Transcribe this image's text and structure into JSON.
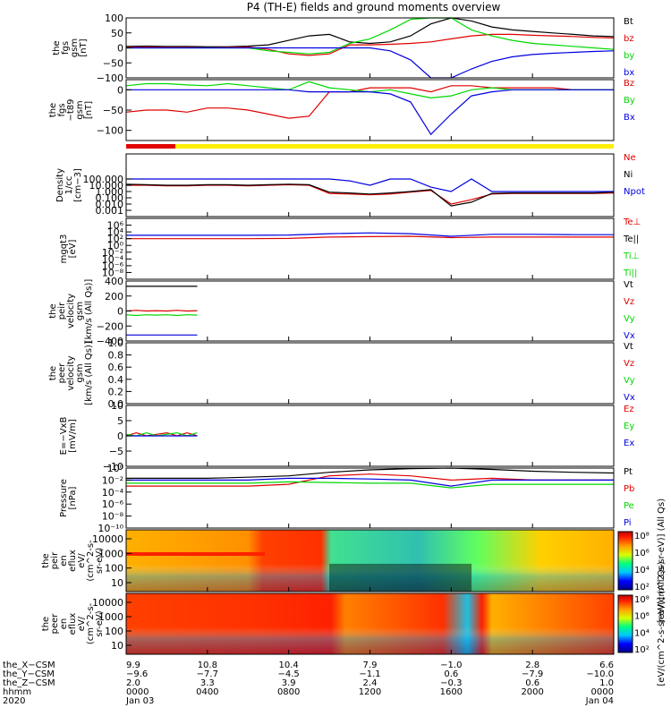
{
  "title": "P4 (TH-E) fields and ground moments overview",
  "colors": {
    "black": "#000000",
    "red": "#e00000",
    "green": "#00d800",
    "blue": "#0000e0",
    "yellow": "#ffee00"
  },
  "chart_data": [
    {
      "type": "line",
      "panel": "fgs",
      "ylabel": [
        "the",
        "fgs",
        "gsm",
        "[nT]"
      ],
      "ylim": [
        -100,
        100
      ],
      "yticks": [
        "100",
        "50",
        "0",
        "−50",
        "−100"
      ],
      "legend": [
        {
          "name": "Bt",
          "color": "#000000"
        },
        {
          "name": "bz",
          "color": "#e00000"
        },
        {
          "name": "by",
          "color": "#00d800"
        },
        {
          "name": "bx",
          "color": "#0000e0"
        }
      ],
      "x_hours": [
        0,
        1,
        2,
        3,
        4,
        5,
        6,
        7,
        8,
        9,
        10,
        11,
        12,
        13,
        14,
        15,
        16,
        17,
        18,
        19,
        20,
        21,
        22,
        23,
        24
      ],
      "series": [
        {
          "name": "Bt",
          "values": [
            5,
            6,
            5,
            5,
            4,
            4,
            6,
            10,
            25,
            40,
            45,
            20,
            15,
            20,
            40,
            80,
            100,
            90,
            70,
            60,
            55,
            50,
            45,
            40,
            38
          ]
        },
        {
          "name": "bz",
          "values": [
            2,
            3,
            2,
            2,
            1,
            2,
            3,
            -5,
            -20,
            -25,
            -20,
            10,
            10,
            12,
            15,
            20,
            30,
            40,
            45,
            45,
            42,
            40,
            38,
            35,
            33
          ]
        },
        {
          "name": "by",
          "values": [
            0,
            0,
            0,
            0,
            0,
            0,
            0,
            -10,
            -15,
            -20,
            -15,
            15,
            30,
            60,
            95,
            100,
            100,
            60,
            40,
            25,
            15,
            10,
            5,
            0,
            -5
          ]
        },
        {
          "name": "bx",
          "values": [
            0,
            0,
            0,
            0,
            0,
            0,
            0,
            0,
            0,
            0,
            0,
            0,
            0,
            -10,
            -40,
            -100,
            -100,
            -70,
            -45,
            -30,
            -22,
            -18,
            -15,
            -12,
            -10
          ]
        }
      ]
    },
    {
      "type": "line",
      "panel": "fgs-t89",
      "ylabel": [
        "the",
        "fgs",
        "−t89",
        "gsm",
        "[nT]"
      ],
      "ylim": [
        -125,
        25
      ],
      "yticks": [
        "0",
        "−50",
        "−100"
      ],
      "legend": [
        {
          "name": "Bz",
          "color": "#e00000"
        },
        {
          "name": "By",
          "color": "#00d800"
        },
        {
          "name": "Bx",
          "color": "#0000e0"
        }
      ],
      "x_hours": [
        0,
        1,
        2,
        3,
        4,
        5,
        6,
        7,
        8,
        9,
        10,
        11,
        12,
        13,
        14,
        15,
        16,
        17,
        18,
        19,
        20,
        21,
        22,
        23,
        24
      ],
      "series": [
        {
          "name": "Bz",
          "values": [
            -55,
            -50,
            -50,
            -55,
            -45,
            -45,
            -50,
            -60,
            -70,
            -65,
            -5,
            -5,
            5,
            5,
            5,
            -5,
            10,
            10,
            5,
            5,
            5,
            5,
            0,
            0,
            0
          ]
        },
        {
          "name": "By",
          "values": [
            10,
            15,
            15,
            12,
            10,
            15,
            10,
            5,
            0,
            20,
            5,
            0,
            -5,
            0,
            -10,
            -20,
            -15,
            0,
            5,
            0,
            0,
            0,
            0,
            0,
            0
          ]
        },
        {
          "name": "Bx",
          "values": [
            0,
            0,
            0,
            0,
            0,
            0,
            0,
            0,
            0,
            -5,
            -5,
            -5,
            -5,
            -10,
            -30,
            -110,
            -60,
            -15,
            -5,
            0,
            0,
            0,
            0,
            0,
            0
          ]
        }
      ]
    },
    {
      "type": "line",
      "panel": "density",
      "log_scale": true,
      "ylabel": [
        "Density",
        "1/cc",
        "[cm−3]"
      ],
      "ylim": [
        0.0001,
        1000000
      ],
      "yticks": [
        "100.000",
        "10.000",
        "1.000",
        "0.100",
        "0.010",
        "0.001"
      ],
      "legend": [
        {
          "name": "Ne",
          "color": "#e00000"
        },
        {
          "name": "Ni",
          "color": "#000000"
        },
        {
          "name": "Npot",
          "color": "#0000e0"
        }
      ],
      "x_hours": [
        0,
        1,
        2,
        3,
        4,
        5,
        6,
        7,
        8,
        9,
        10,
        11,
        12,
        13,
        14,
        15,
        16,
        17,
        18,
        19,
        20,
        21,
        22,
        23,
        24
      ],
      "series": [
        {
          "name": "Ne",
          "values": [
            10,
            10,
            8,
            8,
            10,
            10,
            8,
            10,
            12,
            10,
            0.5,
            0.4,
            0.3,
            0.4,
            0.8,
            1.5,
            0.01,
            0.05,
            0.4,
            0.5,
            0.5,
            0.5,
            0.5,
            0.5,
            0.6
          ]
        },
        {
          "name": "Ni",
          "values": [
            15,
            12,
            10,
            10,
            12,
            12,
            10,
            12,
            15,
            12,
            0.8,
            0.6,
            0.4,
            0.6,
            1,
            2,
            0.005,
            0.02,
            0.5,
            0.6,
            0.6,
            0.6,
            0.6,
            0.6,
            0.8
          ]
        },
        {
          "name": "Npot",
          "values": [
            100,
            100,
            100,
            100,
            100,
            100,
            100,
            100,
            100,
            100,
            100,
            50,
            10,
            100,
            100,
            5,
            1,
            100,
            1,
            1,
            1,
            1,
            1,
            1,
            1
          ]
        }
      ]
    },
    {
      "type": "line",
      "panel": "temperature",
      "log_scale": true,
      "ylabel": [
        "mgqt3",
        "[eV]"
      ],
      "ylim": [
        1e-10,
        100000000
      ],
      "yticks": [
        "10^6",
        "10^4",
        "10^2",
        "10^0",
        "10^-2",
        "10^-4",
        "10^-6",
        "10^-8"
      ],
      "legend": [
        {
          "name": "Te⊥",
          "color": "#e00000"
        },
        {
          "name": "Te||",
          "color": "#000000"
        },
        {
          "name": "Ti⊥",
          "color": "#00d800"
        },
        {
          "name": "Ti||",
          "color": "#00d800"
        }
      ],
      "x_hours": [
        0,
        2,
        4,
        6,
        8,
        10,
        12,
        14,
        16,
        18,
        20,
        22,
        24
      ],
      "series": [
        {
          "name": "Te⊥",
          "values": [
            100,
            100,
            100,
            100,
            120,
            300,
            400,
            500,
            200,
            300,
            300,
            300,
            300
          ]
        },
        {
          "name": "Ti",
          "values": [
            1000,
            1000,
            1000,
            1000,
            1200,
            3000,
            5000,
            3000,
            500,
            2000,
            2000,
            1500,
            1500
          ]
        }
      ]
    },
    {
      "type": "line",
      "panel": "peir-velocity",
      "ylabel": [
        "the",
        "peir",
        "velocity",
        "gsm",
        "[km/s (All Qs)]"
      ],
      "ylim": [
        -400,
        400
      ],
      "yticks": [
        "400",
        "200",
        "0",
        "−200",
        "−400"
      ],
      "legend": [
        {
          "name": "Vt",
          "color": "#000000"
        },
        {
          "name": "Vz",
          "color": "#e00000"
        },
        {
          "name": "Vy",
          "color": "#00d800"
        },
        {
          "name": "Vx",
          "color": "#0000e0"
        }
      ],
      "x_hours": [
        0,
        0.5,
        1,
        1.5,
        2,
        2.5,
        3,
        3.5
      ],
      "series": [
        {
          "name": "Vt",
          "values": [
            330,
            330,
            330,
            330,
            330,
            330,
            330,
            330
          ]
        },
        {
          "name": "Vz",
          "values": [
            0,
            10,
            0,
            5,
            0,
            10,
            0,
            5
          ]
        },
        {
          "name": "Vy",
          "values": [
            -50,
            -60,
            -50,
            -55,
            -50,
            -60,
            -50,
            -55
          ]
        },
        {
          "name": "Vx",
          "values": [
            -320,
            -320,
            -320,
            -320,
            -320,
            -320,
            -320,
            -320
          ]
        }
      ]
    },
    {
      "type": "line",
      "panel": "peer-velocity",
      "ylabel": [
        "the",
        "peer",
        "velocity",
        "gsm",
        "[km/s (All Qs)]"
      ],
      "ylim": [
        0,
        1
      ],
      "yticks": [
        "1.0",
        "0.8",
        "0.6",
        "0.4",
        "0.2",
        "0.0"
      ],
      "legend": [
        {
          "name": "Vt",
          "color": "#000000"
        },
        {
          "name": "Vz",
          "color": "#e00000"
        },
        {
          "name": "Vy",
          "color": "#00d800"
        },
        {
          "name": "Vx",
          "color": "#0000e0"
        }
      ],
      "series": []
    },
    {
      "type": "line",
      "panel": "efield",
      "ylabel": [
        "E=−VxB",
        "[mV/m]"
      ],
      "ylim": [
        -10,
        10
      ],
      "yticks": [
        "10",
        "5",
        "0",
        "−5",
        "−10"
      ],
      "legend": [
        {
          "name": "Ez",
          "color": "#e00000"
        },
        {
          "name": "Ey",
          "color": "#00d800"
        },
        {
          "name": "Ex",
          "color": "#0000e0"
        }
      ],
      "x_hours": [
        0,
        0.5,
        1,
        1.5,
        2,
        2.5,
        3,
        3.5
      ],
      "series": [
        {
          "name": "Ez",
          "values": [
            0,
            1,
            0,
            0.5,
            1,
            0,
            1,
            0
          ]
        },
        {
          "name": "Ey",
          "values": [
            0.5,
            0,
            1,
            0,
            0.5,
            1,
            0,
            1
          ]
        },
        {
          "name": "Ex",
          "values": [
            0,
            0,
            0,
            0,
            0,
            0,
            0,
            0
          ]
        }
      ]
    },
    {
      "type": "line",
      "panel": "pressure",
      "log_scale": true,
      "ylabel": [
        "Pressure",
        "[nPa]"
      ],
      "ylim": [
        1e-10,
        1
      ],
      "yticks": [
        "10^0",
        "10^-2",
        "10^-4",
        "10^-6",
        "10^-8",
        "10^-10"
      ],
      "legend": [
        {
          "name": "Pt",
          "color": "#000000"
        },
        {
          "name": "Pb",
          "color": "#e00000"
        },
        {
          "name": "Pe",
          "color": "#00d800"
        },
        {
          "name": "Pi",
          "color": "#0000e0"
        }
      ],
      "x_hours": [
        0,
        2,
        4,
        6,
        8,
        10,
        12,
        14,
        16,
        18,
        20,
        22,
        24
      ],
      "series": [
        {
          "name": "Pt",
          "values": [
            0.02,
            0.02,
            0.02,
            0.03,
            0.05,
            0.2,
            0.5,
            0.8,
            1,
            0.6,
            0.3,
            0.2,
            0.15
          ]
        },
        {
          "name": "Pb",
          "values": [
            0.001,
            0.001,
            0.001,
            0.001,
            0.002,
            0.05,
            0.1,
            0.05,
            0.01,
            0.02,
            0.01,
            0.01,
            0.01
          ]
        },
        {
          "name": "Pe",
          "values": [
            0.003,
            0.003,
            0.003,
            0.003,
            0.005,
            0.004,
            0.003,
            0.003,
            0.0005,
            0.002,
            0.002,
            0.002,
            0.002
          ]
        },
        {
          "name": "Pi",
          "values": [
            0.01,
            0.01,
            0.01,
            0.01,
            0.02,
            0.02,
            0.015,
            0.01,
            0.001,
            0.01,
            0.01,
            0.01,
            0.01
          ]
        }
      ]
    },
    {
      "type": "heatmap",
      "panel": "peir-eflux",
      "ylabel": [
        "the",
        "peir",
        "en",
        "eflux",
        "eV/",
        "(cm^2-s-",
        "sr-eV)"
      ],
      "ylim": [
        5,
        30000
      ],
      "yticks": [
        "10000",
        "1000",
        "100",
        "10"
      ],
      "colorbar_label": "[eV/(cm^2-s-sr-eV)] (All Qs)",
      "colorbar_ticks": [
        "10^8",
        "10^6",
        "10^4",
        "10^2"
      ]
    },
    {
      "type": "heatmap",
      "panel": "peer-eflux",
      "ylabel": [
        "the",
        "peer",
        "en",
        "eflux",
        "eV/",
        "(cm^2-s-",
        "sr-eV)"
      ],
      "ylim": [
        5,
        30000
      ],
      "yticks": [
        "10000",
        "1000",
        "100",
        "10"
      ],
      "colorbar_label": "[eV/(cm^2-s-sr-eV)] (All Qs)",
      "colorbar_ticks": [
        "10^8",
        "10^6",
        "10^4",
        "10^2"
      ]
    }
  ],
  "ephemeris": {
    "labels": [
      "the_X−CSM",
      "the_Y−CSM",
      "the_Z−CSM",
      "hhmm",
      "2020"
    ],
    "columns": [
      [
        "9.9",
        "−9.6",
        "2.0",
        "0000",
        "Jan 03"
      ],
      [
        "10.8",
        "−7.7",
        "3.3",
        "0400",
        ""
      ],
      [
        "10.4",
        "−4.5",
        "3.9",
        "0800",
        ""
      ],
      [
        "7.9",
        "−1.1",
        "2.4",
        "1200",
        ""
      ],
      [
        "−1.0",
        "0.6",
        "−0.3",
        "1600",
        ""
      ],
      [
        "2.8",
        "−7.9",
        "0.6",
        "2000",
        ""
      ],
      [
        "6.6",
        "−10.0",
        "1.0",
        "0000",
        "Jan 04"
      ]
    ]
  }
}
